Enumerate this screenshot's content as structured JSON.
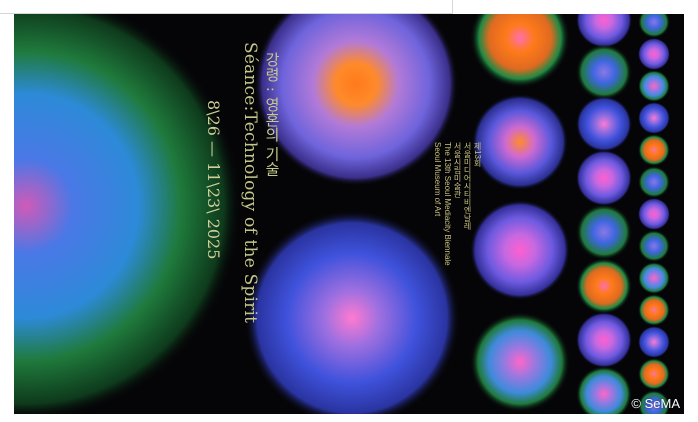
{
  "poster": {
    "title_en": "Séance:Technology of the Spirit",
    "title_ko": "강령 : 영혼의 기술",
    "dates": "8\\26 — 11\\23\\ 2025",
    "info_lines": [
      "제13회",
      "서울미디어시티비엔날레",
      "서울시립미술관",
      "The 13th Seoul Mediacity Biennale",
      "Seoul Museum of Art"
    ],
    "credit": "© SeMA"
  },
  "colors": {
    "background": "#050507",
    "text": "#c6c88a",
    "blue": "#3e58e0",
    "violet": "#7a5ad8",
    "green": "#1f7a3c",
    "orange": "#ff7a1a",
    "pink": "#ff69c8"
  }
}
